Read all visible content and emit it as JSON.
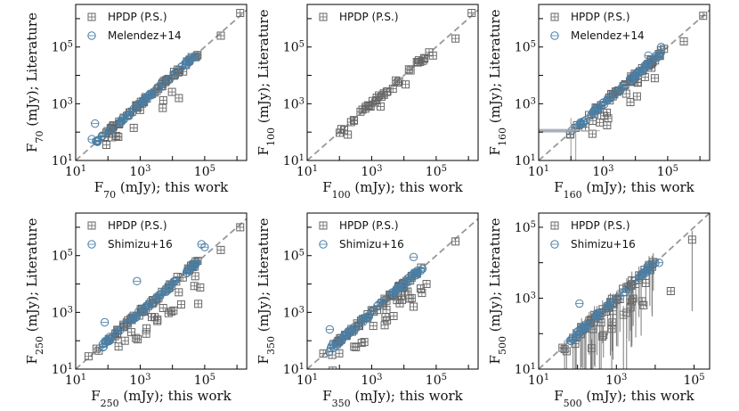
{
  "colors": {
    "hpdp": "#666666",
    "lit": "#4a7fa6",
    "oneToOne": "#999999",
    "errorbar": "#7a7a7a"
  },
  "chart_data": [
    {
      "type": "scatter",
      "id": "p70",
      "xlabel": {
        "base": "F",
        "sub": "70",
        "rest": " (mJy); this work"
      },
      "ylabel": {
        "base": "F",
        "sub": "70",
        "rest": " (mJy); Literature"
      },
      "xlim_log10": [
        1,
        6.3
      ],
      "ylim_log10": [
        1,
        6.5
      ],
      "xticks": [
        {
          "exp": 1,
          "label": "10",
          "sup": "1"
        },
        {
          "exp": 3,
          "label": "10",
          "sup": "3"
        },
        {
          "exp": 5,
          "label": "10",
          "sup": "5"
        }
      ],
      "yticks": [
        {
          "exp": 1,
          "label": "10",
          "sup": "1"
        },
        {
          "exp": 3,
          "label": "10",
          "sup": "3"
        },
        {
          "exp": 5,
          "label": "10",
          "sup": "5"
        }
      ],
      "legend": [
        "HPDP (P.S.)",
        "Melendez+14"
      ],
      "series": [
        {
          "name": "HPDP (P.S.)",
          "marker": "square",
          "seed": 11,
          "n": 70,
          "lo": 1.8,
          "hi": 4.8,
          "spread": 0.08,
          "negFrac": 0.12,
          "neg": 0.6,
          "extra": [
            [
              1.95,
              1.55
            ],
            [
              2.8,
              2.15
            ],
            [
              3.7,
              2.85
            ],
            [
              4.2,
              3.2
            ],
            [
              6.1,
              6.2
            ],
            [
              5.5,
              5.4
            ]
          ]
        },
        {
          "name": "Melendez+14",
          "marker": "circle",
          "seed": 23,
          "n": 60,
          "lo": 1.5,
          "hi": 4.7,
          "spread": 0.06,
          "negFrac": 0.0,
          "neg": 0.0,
          "extra": [
            [
              1.6,
              2.3
            ],
            [
              1.5,
              1.75
            ]
          ]
        }
      ]
    },
    {
      "type": "scatter",
      "id": "p100",
      "xlabel": {
        "base": "F",
        "sub": "100",
        "rest": " (mJy); this work"
      },
      "ylabel": {
        "base": "F",
        "sub": "100",
        "rest": " (mJy); Literature"
      },
      "xlim_log10": [
        1,
        6.3
      ],
      "ylim_log10": [
        1,
        6.5
      ],
      "xticks": [
        {
          "exp": 1,
          "label": "10",
          "sup": "1"
        },
        {
          "exp": 3,
          "label": "10",
          "sup": "3"
        },
        {
          "exp": 5,
          "label": "10",
          "sup": "5"
        }
      ],
      "yticks": [
        {
          "exp": 1,
          "label": "10",
          "sup": "1"
        },
        {
          "exp": 3,
          "label": "10",
          "sup": "3"
        },
        {
          "exp": 5,
          "label": "10",
          "sup": "5"
        }
      ],
      "legend": [
        "HPDP (P.S.)"
      ],
      "series": [
        {
          "name": "HPDP (P.S.)",
          "marker": "square",
          "seed": 37,
          "n": 40,
          "lo": 2.0,
          "hi": 4.8,
          "spread": 0.08,
          "negFrac": 0.1,
          "neg": 0.35,
          "extra": [
            [
              6.1,
              6.2
            ],
            [
              5.6,
              5.3
            ],
            [
              4.9,
              4.7
            ]
          ]
        }
      ]
    },
    {
      "type": "scatter",
      "id": "p160",
      "xlabel": {
        "base": "F",
        "sub": "160",
        "rest": " (mJy); this work"
      },
      "ylabel": {
        "base": "F",
        "sub": "160",
        "rest": " (mJy); Literature"
      },
      "xlim_log10": [
        1,
        6.3
      ],
      "ylim_log10": [
        1,
        6.5
      ],
      "xticks": [
        {
          "exp": 1,
          "label": "10",
          "sup": "1"
        },
        {
          "exp": 3,
          "label": "10",
          "sup": "3"
        },
        {
          "exp": 5,
          "label": "10",
          "sup": "5"
        }
      ],
      "yticks": [
        {
          "exp": 1,
          "label": "10",
          "sup": "1"
        },
        {
          "exp": 3,
          "label": "10",
          "sup": "3"
        },
        {
          "exp": 5,
          "label": "10",
          "sup": "5"
        }
      ],
      "legend": [
        "HPDP (P.S.)",
        "Melendez+14"
      ],
      "series": [
        {
          "name": "HPDP (P.S.)",
          "marker": "square",
          "seed": 41,
          "n": 70,
          "lo": 1.9,
          "hi": 4.9,
          "spread": 0.1,
          "negFrac": 0.2,
          "neg": 0.7,
          "extra": [
            [
              6.1,
              6.1
            ],
            [
              5.5,
              5.2
            ],
            [
              4.6,
              3.9
            ]
          ]
        },
        {
          "name": "Melendez+14",
          "marker": "circle",
          "seed": 53,
          "n": 60,
          "lo": 2.0,
          "hi": 4.8,
          "spread": 0.06,
          "negFrac": 0.0,
          "neg": 0.0,
          "extra": [
            [
              4.8,
              5.0
            ],
            [
              4.4,
              4.7
            ]
          ]
        }
      ]
    },
    {
      "type": "scatter",
      "id": "p250",
      "xlabel": {
        "base": "F",
        "sub": "250",
        "rest": " (mJy); this work"
      },
      "ylabel": {
        "base": "F",
        "sub": "250",
        "rest": " (mJy); Literature"
      },
      "xlim_log10": [
        1,
        6.3
      ],
      "ylim_log10": [
        1,
        6.5
      ],
      "xticks": [
        {
          "exp": 1,
          "label": "10",
          "sup": "1"
        },
        {
          "exp": 3,
          "label": "10",
          "sup": "3"
        },
        {
          "exp": 5,
          "label": "10",
          "sup": "5"
        }
      ],
      "yticks": [
        {
          "exp": 1,
          "label": "10",
          "sup": "1"
        },
        {
          "exp": 3,
          "label": "10",
          "sup": "3"
        },
        {
          "exp": 5,
          "label": "10",
          "sup": "5"
        }
      ],
      "legend": [
        "HPDP (P.S.)",
        "Shimizu+16"
      ],
      "series": [
        {
          "name": "HPDP (P.S.)",
          "marker": "square",
          "seed": 61,
          "n": 80,
          "lo": 1.6,
          "hi": 4.9,
          "spread": 0.1,
          "negFrac": 0.3,
          "neg": 0.8,
          "extra": [
            [
              1.4,
              1.45
            ],
            [
              6.1,
              6.0
            ],
            [
              5.5,
              5.2
            ],
            [
              4.8,
              3.3
            ]
          ]
        },
        {
          "name": "Shimizu+16",
          "marker": "circle",
          "seed": 71,
          "n": 60,
          "lo": 1.6,
          "hi": 4.8,
          "spread": 0.08,
          "negFrac": 0.0,
          "neg": 0.0,
          "extra": [
            [
              2.9,
              4.1
            ],
            [
              1.9,
              2.65
            ],
            [
              4.9,
              5.4
            ],
            [
              5.0,
              5.3
            ]
          ]
        }
      ]
    },
    {
      "type": "scatter",
      "id": "p350",
      "xlabel": {
        "base": "F",
        "sub": "350",
        "rest": " (mJy); this work"
      },
      "ylabel": {
        "base": "F",
        "sub": "350",
        "rest": " (mJy); Literature"
      },
      "xlim_log10": [
        1,
        6.3
      ],
      "ylim_log10": [
        1,
        6.5
      ],
      "xticks": [
        {
          "exp": 1,
          "label": "10",
          "sup": "1"
        },
        {
          "exp": 3,
          "label": "10",
          "sup": "3"
        },
        {
          "exp": 5,
          "label": "10",
          "sup": "5"
        }
      ],
      "yticks": [
        {
          "exp": 1,
          "label": "10",
          "sup": "1"
        },
        {
          "exp": 3,
          "label": "10",
          "sup": "3"
        },
        {
          "exp": 5,
          "label": "10",
          "sup": "5"
        }
      ],
      "legend": [
        "HPDP (P.S.)",
        "Shimizu+16"
      ],
      "series": [
        {
          "name": "HPDP (P.S.)",
          "marker": "square",
          "seed": 83,
          "n": 80,
          "lo": 1.6,
          "hi": 4.7,
          "spread": 0.1,
          "negFrac": 0.28,
          "neg": 0.7,
          "extra": [
            [
              1.5,
              1.55
            ],
            [
              5.6,
              5.5
            ],
            [
              4.7,
              4.0
            ],
            [
              4.3,
              3.2
            ]
          ]
        },
        {
          "name": "Shimizu+16",
          "marker": "circle",
          "seed": 97,
          "n": 60,
          "lo": 1.6,
          "hi": 4.6,
          "spread": 0.08,
          "negFrac": 0.0,
          "neg": 0.0,
          "extra": [
            [
              1.7,
              2.4
            ],
            [
              4.3,
              4.95
            ]
          ]
        }
      ]
    },
    {
      "type": "scatter",
      "id": "p500",
      "xlabel": {
        "base": "F",
        "sub": "500",
        "rest": " (mJy); this work"
      },
      "ylabel": {
        "base": "F",
        "sub": "500",
        "rest": " (mJy); Literature"
      },
      "xlim_log10": [
        1,
        5.4
      ],
      "ylim_log10": [
        1,
        5.4
      ],
      "xticks": [
        {
          "exp": 1,
          "label": "10",
          "sup": "1"
        },
        {
          "exp": 3,
          "label": "10",
          "sup": "3"
        },
        {
          "exp": 5,
          "label": "10",
          "sup": "5"
        }
      ],
      "yticks": [
        {
          "exp": 1,
          "label": "10",
          "sup": "1"
        },
        {
          "exp": 3,
          "label": "10",
          "sup": "3"
        },
        {
          "exp": 5,
          "label": "10",
          "sup": "5"
        }
      ],
      "legend": [
        "HPDP (P.S.)",
        "Shimizu+16"
      ],
      "series": [
        {
          "name": "HPDP (P.S.)",
          "marker": "square",
          "seed": 101,
          "n": 65,
          "lo": 1.6,
          "hi": 4.0,
          "spread": 0.12,
          "negFrac": 0.25,
          "neg": 0.6,
          "errFrac": 0.75,
          "errDown": 1.6,
          "extra": [
            [
              4.95,
              4.65
            ],
            [
              4.4,
              3.2
            ],
            [
              3.7,
              2.8
            ],
            [
              3.4,
              3.5
            ]
          ]
        },
        {
          "name": "Shimizu+16",
          "marker": "circle",
          "seed": 113,
          "n": 45,
          "lo": 1.8,
          "hi": 4.0,
          "spread": 0.06,
          "negFrac": 0.0,
          "neg": 0.0,
          "extra": [
            [
              2.05,
              2.85
            ],
            [
              4.1,
              4.0
            ],
            [
              3.8,
              3.9
            ]
          ]
        }
      ]
    }
  ]
}
